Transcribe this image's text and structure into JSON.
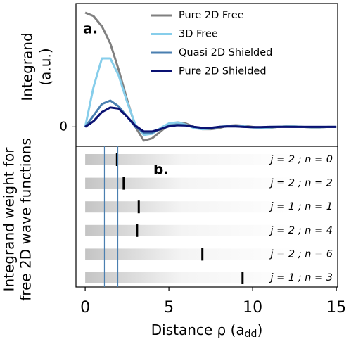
{
  "chart_data": [
    {
      "type": "line",
      "panel_label": "a.",
      "ylabel": [
        "Integrand",
        "(a.u.)"
      ],
      "xlim": [
        -0.55,
        15.08
      ],
      "ylim": [
        -0.17,
        1.08
      ],
      "yticks": [
        0
      ],
      "legend": "upper right",
      "x": [
        0,
        0.5,
        1,
        1.5,
        2,
        2.5,
        3,
        3.5,
        4,
        4.5,
        5,
        5.5,
        6,
        6.5,
        7,
        7.5,
        8,
        8.5,
        9,
        9.5,
        10,
        10.5,
        11,
        11.5,
        12,
        12.5,
        13,
        13.5,
        14,
        14.5,
        15
      ],
      "series": [
        {
          "name": "Pure 2D Free",
          "color": "#808080",
          "values": [
            1.0,
            0.97,
            0.88,
            0.73,
            0.5,
            0.24,
            0.0,
            -0.12,
            -0.1,
            -0.04,
            0.02,
            0.04,
            0.03,
            0.0,
            -0.02,
            -0.02,
            -0.01,
            0.01,
            0.015,
            0.01,
            0.0,
            -0.01,
            -0.01,
            0.0,
            0.005,
            0.005,
            0.0,
            -0.005,
            -0.005,
            0.0,
            0.0
          ]
        },
        {
          "name": "3D Free",
          "color": "#87ceeb",
          "values": [
            0.0,
            0.35,
            0.6,
            0.6,
            0.45,
            0.22,
            0.02,
            -0.07,
            -0.06,
            -0.01,
            0.03,
            0.04,
            0.02,
            -0.01,
            -0.02,
            -0.015,
            0.0,
            0.01,
            0.01,
            0.005,
            -0.005,
            -0.008,
            -0.005,
            0.0,
            0.004,
            0.004,
            0.0,
            -0.003,
            -0.003,
            0.0,
            0.0
          ]
        },
        {
          "name": "Quasi 2D Shielded",
          "color": "#4a7fb0",
          "values": [
            0.0,
            0.1,
            0.2,
            0.23,
            0.18,
            0.09,
            0.0,
            -0.05,
            -0.05,
            -0.02,
            0.01,
            0.02,
            0.015,
            0.0,
            -0.01,
            -0.01,
            0.0,
            0.005,
            0.005,
            0.0,
            -0.003,
            -0.003,
            0.0,
            0.002,
            0.002,
            0.0,
            0.0,
            0.0,
            0.0,
            0.0,
            0.0
          ]
        },
        {
          "name": "Pure 2D Shielded",
          "color": "#0a1172",
          "values": [
            0.0,
            0.05,
            0.13,
            0.17,
            0.16,
            0.09,
            0.01,
            -0.04,
            -0.04,
            -0.02,
            0.005,
            0.015,
            0.012,
            0.0,
            -0.008,
            -0.008,
            0.0,
            0.004,
            0.004,
            0.0,
            -0.002,
            -0.002,
            0.0,
            0.0,
            0.0,
            0.0,
            0.0,
            0.0,
            0.0,
            0.0,
            0.0
          ]
        }
      ]
    },
    {
      "type": "marker",
      "panel_label": "b.",
      "ylabel": [
        "Integrand weight for",
        "free 2D wave functions"
      ],
      "xlabel": [
        "Distance ρ (a",
        "dd",
        ")"
      ],
      "xlim": [
        -0.55,
        15.08
      ],
      "xticks": [
        0,
        5,
        10,
        15
      ],
      "vlines": [
        1.15,
        1.95
      ],
      "vline_color": "#4a7fb0",
      "categories": [
        "j = 2 ; n = 0",
        "j = 2 ; n = 2",
        "j = 1 ; n = 1",
        "j = 2 ; n = 4",
        "j = 2 ; n = 6",
        "j = 1 ; n = 3"
      ],
      "values": [
        1.9,
        2.3,
        3.2,
        3.1,
        7.0,
        9.4
      ],
      "color": "#000000"
    }
  ]
}
